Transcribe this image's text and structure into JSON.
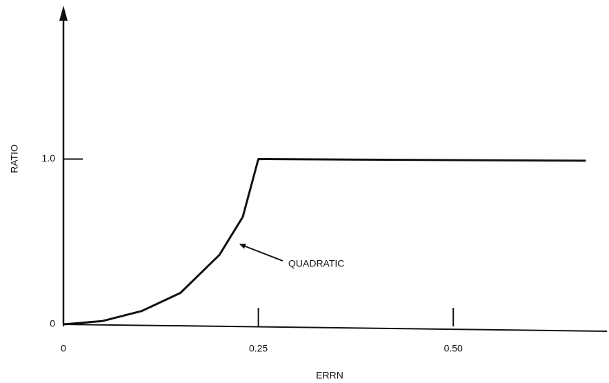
{
  "chart_data": {
    "type": "line",
    "x_label": "ERRN",
    "y_label": "RATIO",
    "annotation": "QUADRATIC",
    "x": [
      0,
      0.05,
      0.1,
      0.15,
      0.2,
      0.23,
      0.25,
      0.67
    ],
    "series": [
      {
        "color": "#111111",
        "values": [
          0,
          0.02,
          0.08,
          0.19,
          0.42,
          0.65,
          1.0,
          0.99
        ]
      }
    ],
    "xlim": [
      0,
      0.69
    ],
    "ylim": [
      0,
      1.9
    ],
    "xticks": [
      0,
      0.25,
      {
        "value": 0.5,
        "label": "0.50"
      }
    ],
    "yticks": [
      0,
      {
        "value": 1,
        "label": "1.0"
      }
    ],
    "grid": false
  }
}
